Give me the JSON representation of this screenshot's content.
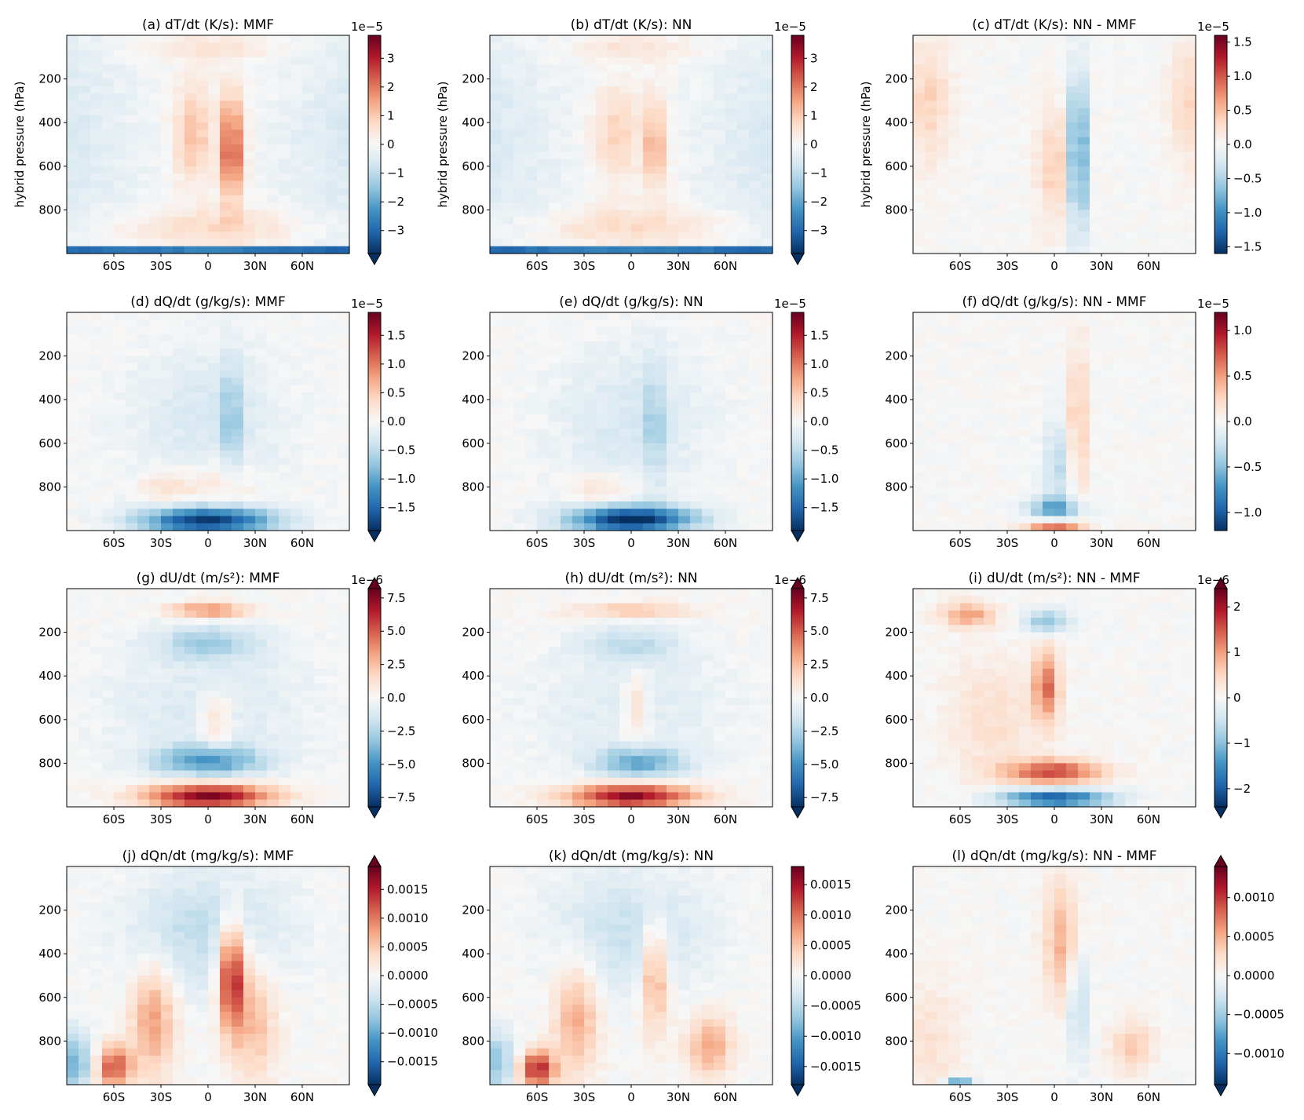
{
  "figure": {
    "ylabel": "hybrid pressure (hPa)",
    "x_ticks": [
      "60S",
      "30S",
      "0",
      "30N",
      "60N"
    ],
    "y_ticks": [
      "200",
      "400",
      "600",
      "800"
    ]
  },
  "colormap": {
    "name": "RdBu_r",
    "stops": [
      "#053061",
      "#2166ac",
      "#4393c3",
      "#92c5de",
      "#d1e5f0",
      "#f7f7f7",
      "#fddbc7",
      "#f4a582",
      "#d6604d",
      "#b2182b",
      "#67001f"
    ]
  },
  "chart_data": [
    {
      "type": "heatmap",
      "id": "a",
      "title": "(a) dT/dt (K/s): MMF",
      "ylabel": "hybrid pressure (hPa)",
      "xlim": [
        -90,
        90
      ],
      "ylim": [
        1000,
        0
      ],
      "x_ticks": [
        "60S",
        "30S",
        "0",
        "30N",
        "60N"
      ],
      "y_ticks": [
        "200",
        "400",
        "600",
        "800"
      ],
      "colorbar": {
        "ticks": [
          "3",
          "2",
          "1",
          "0",
          "−1",
          "−2",
          "−3"
        ],
        "tick_values": [
          3,
          2,
          1,
          0,
          -1,
          -2,
          -3
        ],
        "range": [
          -3.8,
          3.8
        ],
        "scale": "1e−5",
        "extend": "min"
      }
    },
    {
      "type": "heatmap",
      "id": "b",
      "title": "(b) dT/dt (K/s): NN",
      "ylabel": "hybrid pressure (hPa)",
      "xlim": [
        -90,
        90
      ],
      "ylim": [
        1000,
        0
      ],
      "x_ticks": [
        "60S",
        "30S",
        "0",
        "30N",
        "60N"
      ],
      "y_ticks": [
        "200",
        "400",
        "600",
        "800"
      ],
      "colorbar": {
        "ticks": [
          "3",
          "2",
          "1",
          "0",
          "−1",
          "−2",
          "−3"
        ],
        "tick_values": [
          3,
          2,
          1,
          0,
          -1,
          -2,
          -3
        ],
        "range": [
          -3.8,
          3.8
        ],
        "scale": "1e−5",
        "extend": "min"
      }
    },
    {
      "type": "heatmap",
      "id": "c",
      "title": "(c) dT/dt (K/s): NN - MMF",
      "ylabel": "hybrid pressure (hPa)",
      "xlim": [
        -90,
        90
      ],
      "ylim": [
        1000,
        0
      ],
      "x_ticks": [
        "60S",
        "30S",
        "0",
        "30N",
        "60N"
      ],
      "y_ticks": [
        "200",
        "400",
        "600",
        "800"
      ],
      "colorbar": {
        "ticks": [
          "1.5",
          "1.0",
          "0.5",
          "0.0",
          "−0.5",
          "−1.0",
          "−1.5"
        ],
        "tick_values": [
          1.5,
          1.0,
          0.5,
          0.0,
          -0.5,
          -1.0,
          -1.5
        ],
        "range": [
          -1.6,
          1.6
        ],
        "scale": "1e−5",
        "extend": "none"
      }
    },
    {
      "type": "heatmap",
      "id": "d",
      "title": "(d) dQ/dt (g/kg/s): MMF",
      "ylabel": "",
      "xlim": [
        -90,
        90
      ],
      "ylim": [
        1000,
        0
      ],
      "x_ticks": [
        "60S",
        "30S",
        "0",
        "30N",
        "60N"
      ],
      "y_ticks": [
        "200",
        "400",
        "600",
        "800"
      ],
      "colorbar": {
        "ticks": [
          "1.5",
          "1.0",
          "0.5",
          "0.0",
          "−0.5",
          "−1.0",
          "−1.5"
        ],
        "tick_values": [
          1.5,
          1.0,
          0.5,
          0.0,
          -0.5,
          -1.0,
          -1.5
        ],
        "range": [
          -1.9,
          1.9
        ],
        "scale": "1e−5",
        "extend": "min"
      }
    },
    {
      "type": "heatmap",
      "id": "e",
      "title": "(e) dQ/dt (g/kg/s): NN",
      "ylabel": "",
      "xlim": [
        -90,
        90
      ],
      "ylim": [
        1000,
        0
      ],
      "x_ticks": [
        "60S",
        "30S",
        "0",
        "30N",
        "60N"
      ],
      "y_ticks": [
        "200",
        "400",
        "600",
        "800"
      ],
      "colorbar": {
        "ticks": [
          "1.5",
          "1.0",
          "0.5",
          "0.0",
          "−0.5",
          "−1.0",
          "−1.5"
        ],
        "tick_values": [
          1.5,
          1.0,
          0.5,
          0.0,
          -0.5,
          -1.0,
          -1.5
        ],
        "range": [
          -1.9,
          1.9
        ],
        "scale": "1e−5",
        "extend": "min"
      }
    },
    {
      "type": "heatmap",
      "id": "f",
      "title": "(f) dQ/dt (g/kg/s): NN - MMF",
      "ylabel": "",
      "xlim": [
        -90,
        90
      ],
      "ylim": [
        1000,
        0
      ],
      "x_ticks": [
        "60S",
        "30S",
        "0",
        "30N",
        "60N"
      ],
      "y_ticks": [
        "200",
        "400",
        "600",
        "800"
      ],
      "colorbar": {
        "ticks": [
          "1.0",
          "0.5",
          "0.0",
          "−0.5",
          "−1.0"
        ],
        "tick_values": [
          1.0,
          0.5,
          0.0,
          -0.5,
          -1.0
        ],
        "range": [
          -1.2,
          1.2
        ],
        "scale": "1e−5",
        "extend": "none"
      }
    },
    {
      "type": "heatmap",
      "id": "g",
      "title": "(g) dU/dt (m/s²): MMF",
      "ylabel": "",
      "xlim": [
        -90,
        90
      ],
      "ylim": [
        1000,
        0
      ],
      "x_ticks": [
        "60S",
        "30S",
        "0",
        "30N",
        "60N"
      ],
      "y_ticks": [
        "200",
        "400",
        "600",
        "800"
      ],
      "colorbar": {
        "ticks": [
          "7.5",
          "5.0",
          "2.5",
          "0.0",
          "−2.5",
          "−5.0",
          "−7.5"
        ],
        "tick_values": [
          7.5,
          5.0,
          2.5,
          0.0,
          -2.5,
          -5.0,
          -7.5
        ],
        "range": [
          -8.2,
          8.2
        ],
        "scale": "1e−6",
        "extend": "both"
      }
    },
    {
      "type": "heatmap",
      "id": "h",
      "title": "(h) dU/dt (m/s²): NN",
      "ylabel": "",
      "xlim": [
        -90,
        90
      ],
      "ylim": [
        1000,
        0
      ],
      "x_ticks": [
        "60S",
        "30S",
        "0",
        "30N",
        "60N"
      ],
      "y_ticks": [
        "200",
        "400",
        "600",
        "800"
      ],
      "colorbar": {
        "ticks": [
          "7.5",
          "5.0",
          "2.5",
          "0.0",
          "−2.5",
          "−5.0",
          "−7.5"
        ],
        "tick_values": [
          7.5,
          5.0,
          2.5,
          0.0,
          -2.5,
          -5.0,
          -7.5
        ],
        "range": [
          -8.2,
          8.2
        ],
        "scale": "1e−6",
        "extend": "both"
      }
    },
    {
      "type": "heatmap",
      "id": "i",
      "title": "(i) dU/dt (m/s²): NN - MMF",
      "ylabel": "",
      "xlim": [
        -90,
        90
      ],
      "ylim": [
        1000,
        0
      ],
      "x_ticks": [
        "60S",
        "30S",
        "0",
        "30N",
        "60N"
      ],
      "y_ticks": [
        "200",
        "400",
        "600",
        "800"
      ],
      "colorbar": {
        "ticks": [
          "2",
          "1",
          "0",
          "−1",
          "−2"
        ],
        "tick_values": [
          2,
          1,
          0,
          -1,
          -2
        ],
        "range": [
          -2.4,
          2.4
        ],
        "scale": "1e−6",
        "extend": "both"
      }
    },
    {
      "type": "heatmap",
      "id": "j",
      "title": "(j) dQn/dt (mg/kg/s): MMF",
      "ylabel": "",
      "xlim": [
        -90,
        90
      ],
      "ylim": [
        1000,
        0
      ],
      "x_ticks": [
        "60S",
        "30S",
        "0",
        "30N",
        "60N"
      ],
      "y_ticks": [
        "200",
        "400",
        "600",
        "800"
      ],
      "colorbar": {
        "ticks": [
          "0.0015",
          "0.0010",
          "0.0005",
          "0.0000",
          "−0.0005",
          "−0.0010",
          "−0.0015"
        ],
        "tick_values": [
          0.0015,
          0.001,
          0.0005,
          0.0,
          -0.0005,
          -0.001,
          -0.0015
        ],
        "range": [
          -0.0019,
          0.0019
        ],
        "scale": "",
        "extend": "both"
      }
    },
    {
      "type": "heatmap",
      "id": "k",
      "title": "(k) dQn/dt (mg/kg/s): NN",
      "ylabel": "",
      "xlim": [
        -90,
        90
      ],
      "ylim": [
        1000,
        0
      ],
      "x_ticks": [
        "60S",
        "30S",
        "0",
        "30N",
        "60N"
      ],
      "y_ticks": [
        "200",
        "400",
        "600",
        "800"
      ],
      "colorbar": {
        "ticks": [
          "0.0015",
          "0.0010",
          "0.0005",
          "0.0000",
          "−0.0005",
          "−0.0010",
          "−0.0015"
        ],
        "tick_values": [
          0.0015,
          0.001,
          0.0005,
          0.0,
          -0.0005,
          -0.001,
          -0.0015
        ],
        "range": [
          -0.0018,
          0.0018
        ],
        "scale": "",
        "extend": "min"
      }
    },
    {
      "type": "heatmap",
      "id": "l",
      "title": "(l) dQn/dt (mg/kg/s): NN - MMF",
      "ylabel": "",
      "xlim": [
        -90,
        90
      ],
      "ylim": [
        1000,
        0
      ],
      "x_ticks": [
        "60S",
        "30S",
        "0",
        "30N",
        "60N"
      ],
      "y_ticks": [
        "200",
        "400",
        "600",
        "800"
      ],
      "colorbar": {
        "ticks": [
          "0.0010",
          "0.0005",
          "0.0000",
          "−0.0005",
          "−0.0010"
        ],
        "tick_values": [
          0.001,
          0.0005,
          0.0,
          -0.0005,
          -0.001
        ],
        "range": [
          -0.0014,
          0.0014
        ],
        "scale": "",
        "extend": "both"
      }
    }
  ]
}
